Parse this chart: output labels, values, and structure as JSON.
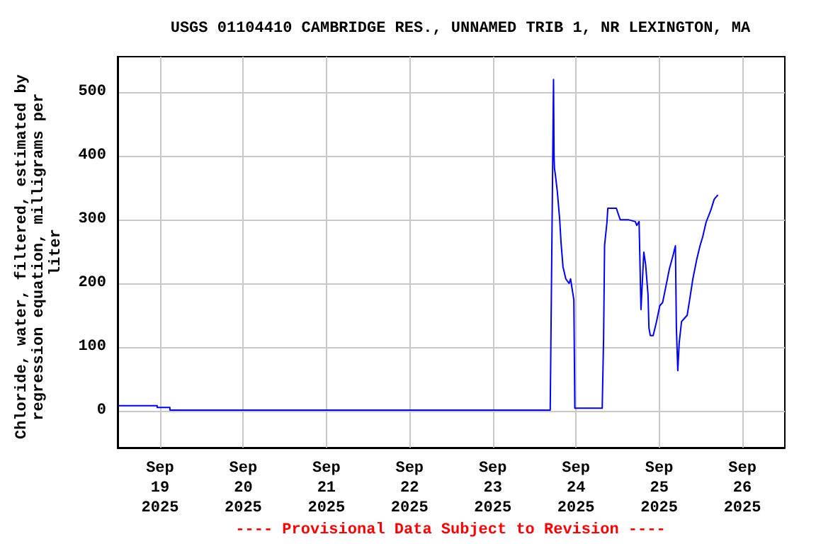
{
  "chart_data": {
    "type": "line",
    "title": "USGS 01104410 CAMBRIDGE RES., UNNAMED TRIB 1, NR LEXINGTON, MA",
    "ylabel": "Chloride, water, filtered, estimated by regression equation, milligrams per liter",
    "annotations": [
      "---- Provisional Data Subject to Revision ----"
    ],
    "x": [
      "2025-09-18T12:00",
      "2025-09-18T23:10",
      "2025-09-18T23:12",
      "2025-09-19T02:50",
      "2025-09-19T02:52",
      "2025-09-23T16:34",
      "2025-09-23T17:31",
      "2025-09-23T17:40",
      "2025-09-23T17:48",
      "2025-09-23T18:04",
      "2025-09-23T18:37",
      "2025-09-23T19:18",
      "2025-09-23T19:42",
      "2025-09-23T20:15",
      "2025-09-23T21:04",
      "2025-09-23T22:01",
      "2025-09-23T22:26",
      "2025-09-23T23:23",
      "2025-09-23T23:40",
      "2025-09-24T07:34",
      "2025-09-24T07:58",
      "2025-09-24T08:15",
      "2025-09-24T08:56",
      "2025-09-24T09:11",
      "2025-09-24T11:39",
      "2025-09-24T12:04",
      "2025-09-24T12:45",
      "2025-09-24T15:04",
      "2025-09-24T17:07",
      "2025-09-24T17:31",
      "2025-09-24T18:12",
      "2025-09-24T18:45",
      "2025-09-24T19:34",
      "2025-09-24T20:05",
      "2025-09-24T20:47",
      "2025-09-24T21:03",
      "2025-09-24T21:27",
      "2025-09-24T22:16",
      "2025-09-24T23:14",
      "2025-09-25T00:11",
      "2025-09-25T01:00",
      "2025-09-25T01:58",
      "2025-09-25T02:55",
      "2025-09-25T04:00",
      "2025-09-25T04:41",
      "2025-09-25T04:58",
      "2025-09-25T05:22",
      "2025-09-25T05:47",
      "2025-09-25T06:27",
      "2025-09-25T08:05",
      "2025-09-25T08:47",
      "2025-09-25T09:43",
      "2025-09-25T10:49",
      "2025-09-25T11:47",
      "2025-09-25T12:36",
      "2025-09-25T13:32",
      "2025-09-25T14:54",
      "2025-09-25T15:52",
      "2025-09-25T16:57"
    ],
    "series": [
      {
        "color": "#0000ff",
        "values": [
          8,
          8,
          5,
          5,
          1,
          1,
          520,
          400,
          380,
          370,
          344,
          300,
          263,
          226,
          207,
          200,
          207,
          174,
          4,
          4,
          115,
          260,
          296,
          318,
          318,
          311,
          300,
          300,
          297,
          291,
          297,
          159,
          249,
          230,
          182,
          130,
          118,
          118,
          140,
          165,
          170,
          196,
          222,
          244,
          259,
          130,
          63,
          107,
          140,
          150,
          174,
          207,
          237,
          259,
          274,
          296,
          315,
          332,
          339
        ]
      }
    ],
    "xlim": [
      "2025-09-18T11:45",
      "2025-09-26T12:15"
    ],
    "xticks": [
      {
        "value": "2025-09-19",
        "label": "Sep\n19\n2025"
      },
      {
        "value": "2025-09-20",
        "label": "Sep\n20\n2025"
      },
      {
        "value": "2025-09-21",
        "label": "Sep\n21\n2025"
      },
      {
        "value": "2025-09-22",
        "label": "Sep\n22\n2025"
      },
      {
        "value": "2025-09-23",
        "label": "Sep\n23\n2025"
      },
      {
        "value": "2025-09-24",
        "label": "Sep\n24\n2025"
      },
      {
        "value": "2025-09-25",
        "label": "Sep\n25\n2025"
      },
      {
        "value": "2025-09-26",
        "label": "Sep\n26\n2025"
      }
    ],
    "ylim": [
      -58,
      556
    ],
    "yticks": [
      0,
      100,
      200,
      300,
      400,
      500
    ],
    "grid": true,
    "marker": "none",
    "line_style": "solid"
  }
}
